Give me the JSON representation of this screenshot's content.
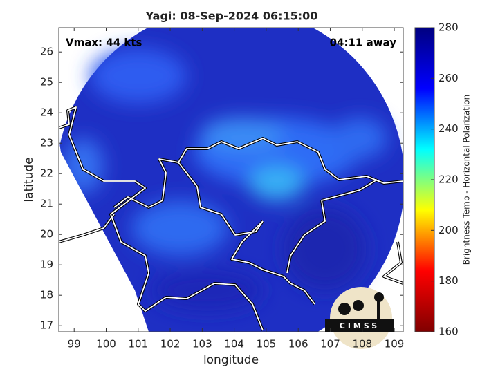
{
  "chart_data": {
    "type": "map",
    "title": "Yagi: 08-Sep-2024 06:15:00",
    "annotations": [
      "Vmax: 44 kts",
      "04:11 away"
    ],
    "xlabel": "longitude",
    "ylabel": "latitude",
    "xlim": [
      98.52,
      109.28
    ],
    "ylim": [
      16.8,
      26.8
    ],
    "xticks": [
      99,
      100,
      101,
      102,
      103,
      104,
      105,
      106,
      107,
      108,
      109
    ],
    "yticks": [
      17,
      18,
      19,
      20,
      21,
      22,
      23,
      24,
      25,
      26
    ],
    "colorbar": {
      "label": "Brightness Temp - Horizontal Polarization",
      "lim": [
        160,
        280
      ],
      "ticks": [
        160,
        180,
        200,
        220,
        240,
        260,
        280
      ],
      "colors": [
        "#800000",
        "#ff0000",
        "#ffff00",
        "#00ffff",
        "#0000ff",
        "#000080"
      ]
    },
    "logo": "CIMSS"
  }
}
